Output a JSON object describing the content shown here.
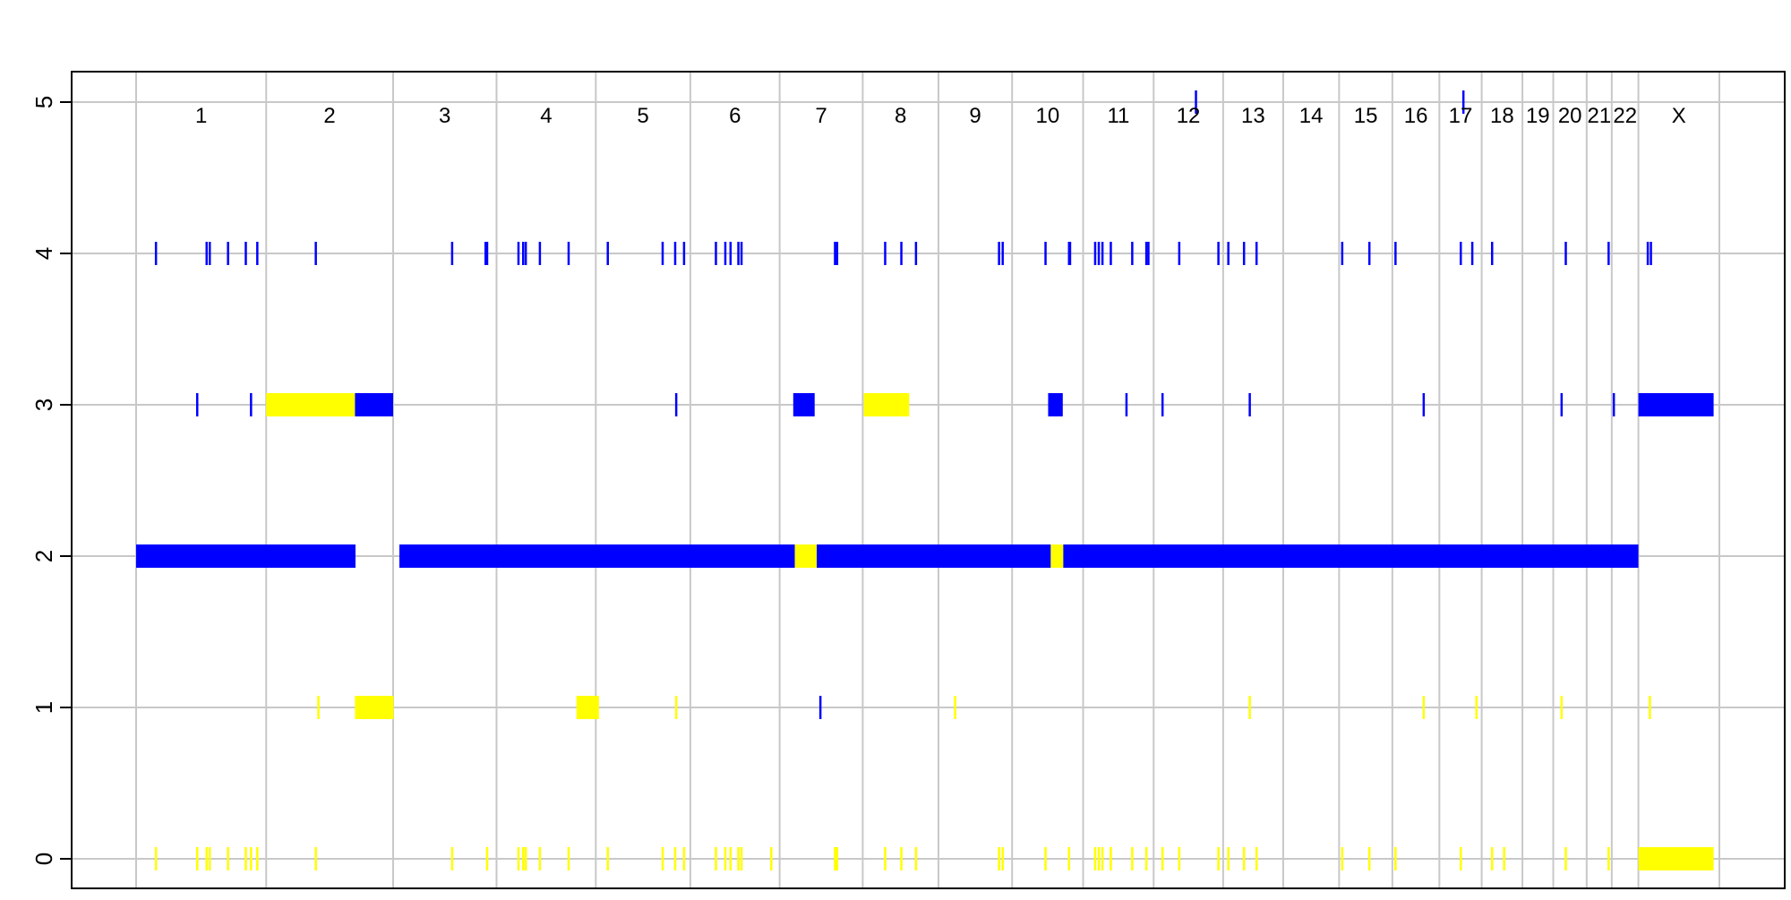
{
  "chart_data": {
    "type": "scatter",
    "title": "",
    "xlabel": "",
    "ylabel": "",
    "ylim": [
      0,
      5
    ],
    "y_ticks": [
      "0",
      "1",
      "2",
      "3",
      "4",
      "5"
    ],
    "grid": true,
    "colors": {
      "blue": "#0000ff",
      "yellow": "#ffff00",
      "grid": "#c8c8c8"
    },
    "chromosomes": [
      {
        "label": "1",
        "start": 0,
        "end": 249
      },
      {
        "label": "2",
        "start": 249,
        "end": 492
      },
      {
        "label": "3",
        "start": 492,
        "end": 690
      },
      {
        "label": "4",
        "start": 690,
        "end": 880
      },
      {
        "label": "5",
        "start": 880,
        "end": 1061
      },
      {
        "label": "6",
        "start": 1061,
        "end": 1232
      },
      {
        "label": "7",
        "start": 1232,
        "end": 1391
      },
      {
        "label": "8",
        "start": 1391,
        "end": 1536
      },
      {
        "label": "9",
        "start": 1536,
        "end": 1677
      },
      {
        "label": "10",
        "start": 1677,
        "end": 1813
      },
      {
        "label": "11",
        "start": 1813,
        "end": 1948
      },
      {
        "label": "12",
        "start": 1948,
        "end": 2081
      },
      {
        "label": "13",
        "start": 2081,
        "end": 2196
      },
      {
        "label": "14",
        "start": 2196,
        "end": 2303
      },
      {
        "label": "15",
        "start": 2303,
        "end": 2405
      },
      {
        "label": "16",
        "start": 2405,
        "end": 2495
      },
      {
        "label": "17",
        "start": 2495,
        "end": 2576
      },
      {
        "label": "18",
        "start": 2576,
        "end": 2654
      },
      {
        "label": "19",
        "start": 2654,
        "end": 2713
      },
      {
        "label": "20",
        "start": 2713,
        "end": 2777
      },
      {
        "label": "21",
        "start": 2777,
        "end": 2825
      },
      {
        "label": "22",
        "start": 2825,
        "end": 2876
      },
      {
        "label": "X",
        "start": 2876,
        "end": 3031
      }
    ],
    "segments": [
      {
        "cn": 2,
        "color": "blue",
        "x0": 0,
        "x1": 420
      },
      {
        "cn": 2,
        "color": "blue",
        "x0": 504,
        "x1": 1261
      },
      {
        "cn": 2,
        "color": "yellow",
        "x0": 1261,
        "x1": 1303
      },
      {
        "cn": 2,
        "color": "blue",
        "x0": 1303,
        "x1": 1751
      },
      {
        "cn": 2,
        "color": "yellow",
        "x0": 1751,
        "x1": 1775
      },
      {
        "cn": 2,
        "color": "blue",
        "x0": 1775,
        "x1": 2876
      },
      {
        "cn": 3,
        "color": "yellow",
        "x0": 249,
        "x1": 419
      },
      {
        "cn": 3,
        "color": "blue",
        "x0": 419,
        "x1": 492
      },
      {
        "cn": 3,
        "color": "blue",
        "x0": 1258,
        "x1": 1299
      },
      {
        "cn": 3,
        "color": "yellow",
        "x0": 1393,
        "x1": 1480
      },
      {
        "cn": 3,
        "color": "blue",
        "x0": 1746,
        "x1": 1774
      },
      {
        "cn": 3,
        "color": "blue",
        "x0": 2876,
        "x1": 3020
      },
      {
        "cn": 1,
        "color": "yellow",
        "x0": 419,
        "x1": 493
      },
      {
        "cn": 1,
        "color": "yellow",
        "x0": 843,
        "x1": 886
      },
      {
        "cn": 0,
        "color": "yellow",
        "x0": 2876,
        "x1": 3020
      }
    ],
    "ticks": [
      {
        "cn": 5,
        "color": "blue",
        "x": [
          2029,
          2541
        ]
      },
      {
        "cn": 4,
        "color": "blue",
        "x": [
          38,
          135,
          141,
          176,
          210,
          232,
          344,
          605,
          669,
          672,
          732,
          741,
          746,
          773,
          828,
          903,
          1008,
          1032,
          1049,
          1110,
          1128,
          1138,
          1153,
          1159,
          1338,
          1342,
          1434,
          1465,
          1493,
          1652,
          1659,
          1741,
          1786,
          1788,
          1836,
          1843,
          1850,
          1866,
          1907,
          1934,
          1938,
          1997,
          2072,
          2091,
          2121,
          2145,
          2309,
          2361,
          2411,
          2536,
          2558,
          2596,
          2737,
          2819,
          2894,
          2900
        ]
      },
      {
        "cn": 3,
        "color": "blue",
        "x": [
          117,
          220,
          1034,
          1896,
          1965,
          2132,
          2465,
          2729,
          2829,
          2882,
          2903
        ]
      },
      {
        "cn": 1,
        "color": "yellow",
        "x": [
          349,
          1034,
          1568,
          2132,
          2465,
          2566,
          2729,
          2898
        ]
      },
      {
        "cn": 1,
        "color": "blue",
        "x": [
          1310
        ]
      },
      {
        "cn": 0,
        "color": "yellow",
        "x": [
          38,
          117,
          135,
          141,
          176,
          210,
          220,
          232,
          344,
          605,
          672,
          732,
          741,
          746,
          773,
          828,
          903,
          1008,
          1032,
          1049,
          1110,
          1128,
          1138,
          1153,
          1159,
          1216,
          1338,
          1342,
          1434,
          1465,
          1493,
          1652,
          1659,
          1741,
          1786,
          1836,
          1843,
          1850,
          1866,
          1907,
          1934,
          1965,
          1997,
          2072,
          2091,
          2121,
          2145,
          2309,
          2361,
          2411,
          2536,
          2596,
          2619,
          2737,
          2819
        ]
      }
    ]
  }
}
